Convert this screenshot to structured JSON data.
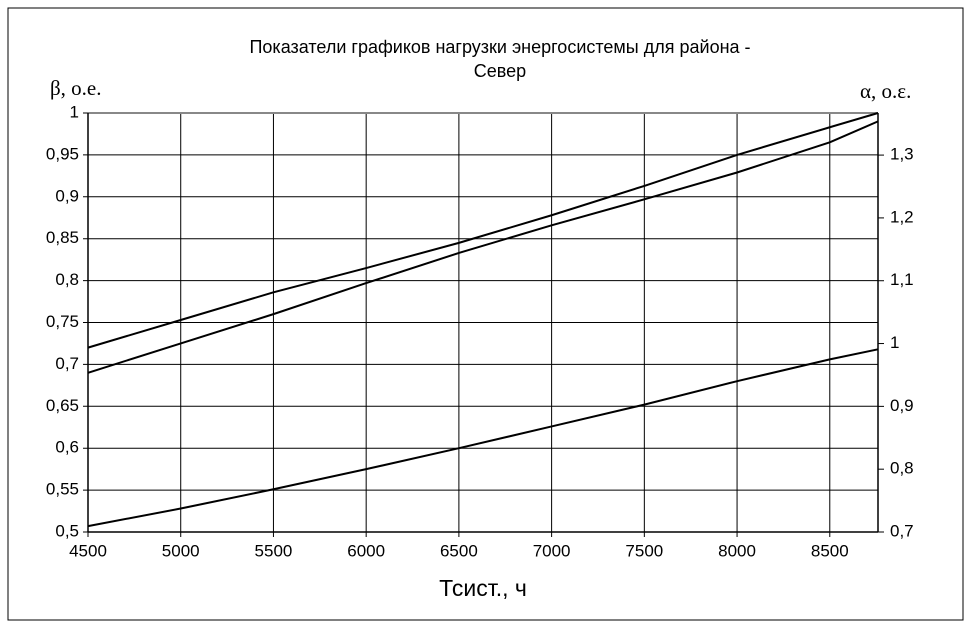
{
  "chart_data": {
    "type": "line",
    "title": [
      "Показатели графиков нагрузки энергосистемы для района -",
      "Север"
    ],
    "y_label": "β, о.е.",
    "y2_label": "α, о.ε.",
    "x_label": "Тсист., ч",
    "x": [
      4500,
      5000,
      5500,
      6000,
      6500,
      7000,
      7500,
      8000,
      8500,
      8760
    ],
    "series": [
      {
        "color": "#000000",
        "values": [
          0.72,
          0.753,
          0.786,
          0.815,
          0.845,
          0.878,
          0.913,
          0.95,
          0.983,
          1.0
        ]
      },
      {
        "color": "#000000",
        "values": [
          0.69,
          0.725,
          0.76,
          0.797,
          0.833,
          0.866,
          0.897,
          0.929,
          0.965,
          0.99
        ]
      },
      {
        "color": "#000000",
        "values": [
          0.507,
          0.528,
          0.551,
          0.575,
          0.6,
          0.626,
          0.652,
          0.68,
          0.706,
          0.718
        ]
      }
    ],
    "xlim": [
      4500,
      8760
    ],
    "xticks": [
      4500,
      5000,
      5500,
      6000,
      6500,
      7000,
      7500,
      8000,
      8500
    ],
    "ylim": [
      0.5,
      1.0
    ],
    "yticks": [
      {
        "value": 0.5,
        "label": "0,5"
      },
      {
        "value": 0.55,
        "label": "0,55"
      },
      {
        "value": 0.6,
        "label": "0,6"
      },
      {
        "value": 0.65,
        "label": "0,65"
      },
      {
        "value": 0.7,
        "label": "0,7"
      },
      {
        "value": 0.75,
        "label": "0,75"
      },
      {
        "value": 0.8,
        "label": "0,8"
      },
      {
        "value": 0.85,
        "label": "0,85"
      },
      {
        "value": 0.9,
        "label": "0,9"
      },
      {
        "value": 0.95,
        "label": "0,95"
      },
      1
    ],
    "y2lim": [
      0.7,
      1.367
    ],
    "y2ticks": [
      {
        "value": 0.7,
        "label": "0,7"
      },
      {
        "value": 0.8,
        "label": "0,8"
      },
      {
        "value": 0.9,
        "label": "0,9"
      },
      1,
      {
        "value": 1.1,
        "label": "1,1"
      },
      {
        "value": 1.2,
        "label": "1,2"
      },
      {
        "value": 1.3,
        "label": "1,3"
      }
    ],
    "grid": true
  }
}
